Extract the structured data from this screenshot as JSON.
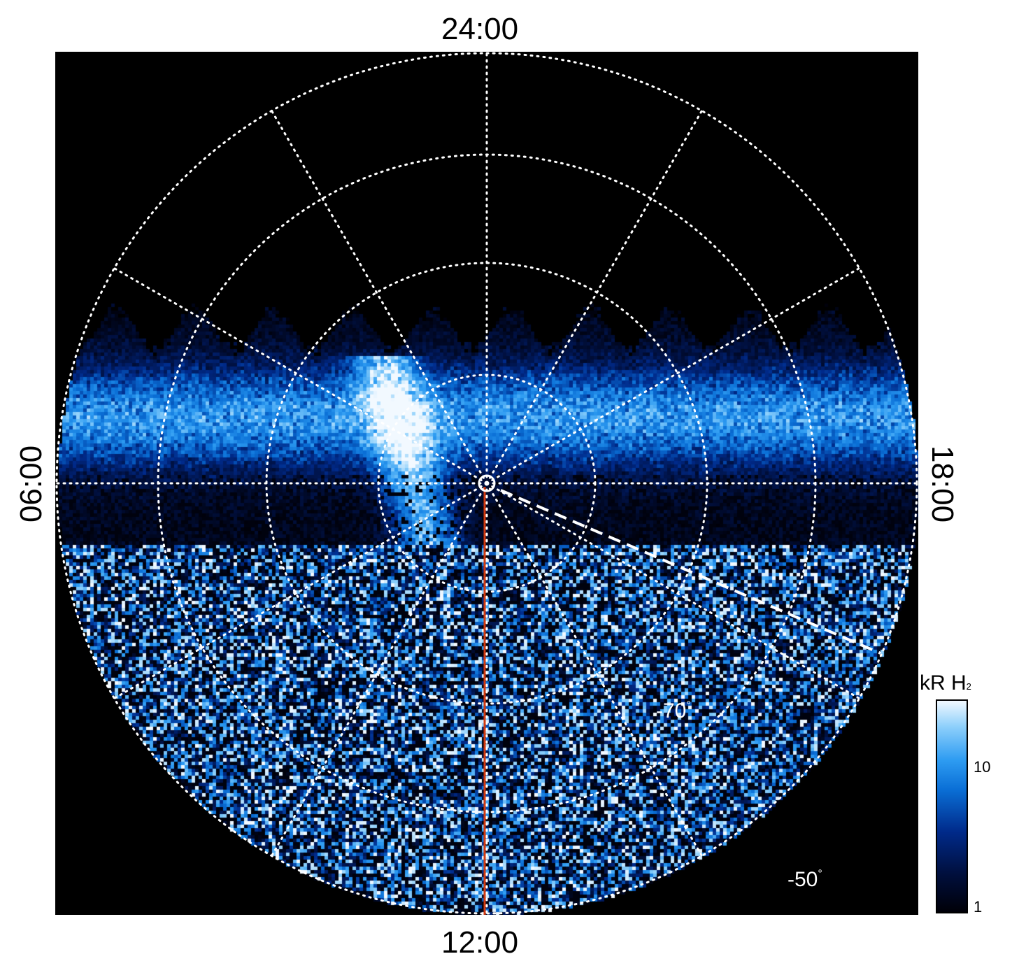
{
  "chart_data": {
    "type": "heatmap",
    "projection": "polar",
    "title": "",
    "mlt_labels": {
      "top": "24:00",
      "bottom": "12:00",
      "left": "06:00",
      "right": "18:00"
    },
    "latitude_labels": [
      {
        "text": "-70",
        "unit": "°",
        "latitude": -70
      },
      {
        "text": "-50",
        "unit": "°",
        "latitude": -50
      }
    ],
    "grid": true,
    "grid_style": "dotted white",
    "latitude_circles": [
      -80,
      -70,
      -60,
      -50
    ],
    "mlt_meridian_step_hours": 2,
    "colorbar": {
      "label": "kR H",
      "label_subscript": "2",
      "scale": "log",
      "range": [
        1,
        20
      ],
      "ticks": [
        {
          "value": 10,
          "label": "10"
        },
        {
          "value": 1,
          "label": "1"
        }
      ],
      "colormap": [
        "#000008",
        "#000f3d",
        "#002a8a",
        "#0a6fd6",
        "#2e9cf2",
        "#8fd0fb",
        "#f2f9ff"
      ]
    },
    "reference_line": {
      "color": "#d23a10",
      "from": "pole",
      "toward_mlt": "12:00"
    },
    "dashed_line": {
      "color": "#ffffff",
      "toward_mlt": "16:00"
    },
    "pole_marker": "circle",
    "emission_features": [
      {
        "description": "bright main auroral arc",
        "mlt_range": [
          "05:00",
          "20:00"
        ]
      },
      {
        "description": "bright arc extending toward dawn-noon sector",
        "mlt_range": [
          "08:00",
          "11:00"
        ]
      }
    ]
  }
}
